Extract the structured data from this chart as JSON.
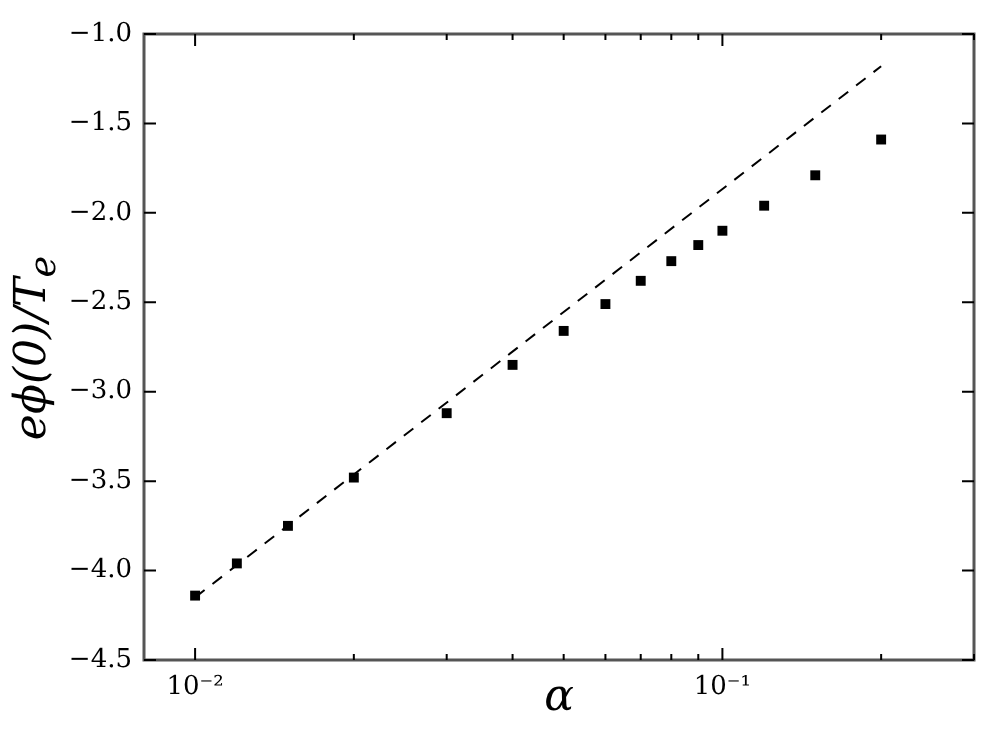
{
  "chart_data": {
    "type": "scatter",
    "xlabel": "α",
    "ylabel": "eϕ(0)/T$_{e}$",
    "log": "x",
    "grid": false,
    "legend": false,
    "xlim": [
      0.008,
      0.3
    ],
    "ylim": [
      -4.5,
      -1.0
    ],
    "xticks": [
      {
        "value": 0.01,
        "label": "10⁻²"
      },
      {
        "value": 0.02,
        "label": null
      },
      {
        "value": 0.03,
        "label": null
      },
      {
        "value": 0.04,
        "label": null
      },
      {
        "value": 0.05,
        "label": null
      },
      {
        "value": 0.06,
        "label": null
      },
      {
        "value": 0.07,
        "label": null
      },
      {
        "value": 0.08,
        "label": null
      },
      {
        "value": 0.09,
        "label": null
      },
      {
        "value": 0.1,
        "label": "10⁻¹"
      },
      {
        "value": 0.2,
        "label": null
      },
      {
        "value": 0.3,
        "label": null
      }
    ],
    "yticks": [
      {
        "value": -4.5,
        "label": "−4.5"
      },
      {
        "value": -4.0,
        "label": "−4.0"
      },
      {
        "value": -3.5,
        "label": "−3.5"
      },
      {
        "value": -3.0,
        "label": "−3.0"
      },
      {
        "value": -2.5,
        "label": "−2.5"
      },
      {
        "value": -2.0,
        "label": "−2.0"
      },
      {
        "value": -1.5,
        "label": "−1.5"
      },
      {
        "value": -1.0,
        "label": "−1.0"
      }
    ],
    "series": [
      {
        "color": "#000000",
        "marker": "square",
        "x": [
          0.01,
          0.012,
          0.015,
          0.02,
          0.03,
          0.04,
          0.05,
          0.06,
          0.07,
          0.08,
          0.09,
          0.1,
          0.12,
          0.15,
          0.2
        ],
        "values": [
          -4.14,
          -3.96,
          -3.75,
          -3.48,
          -3.12,
          -2.85,
          -2.66,
          -2.51,
          -2.38,
          -2.27,
          -2.18,
          -2.1,
          -1.96,
          -1.79,
          -1.59
        ]
      },
      {
        "type": "line",
        "color": "#000000",
        "marker": "none",
        "line_style": "dashed",
        "x": [
          0.01,
          0.2
        ],
        "values": [
          -4.15,
          -1.18
        ]
      }
    ]
  }
}
